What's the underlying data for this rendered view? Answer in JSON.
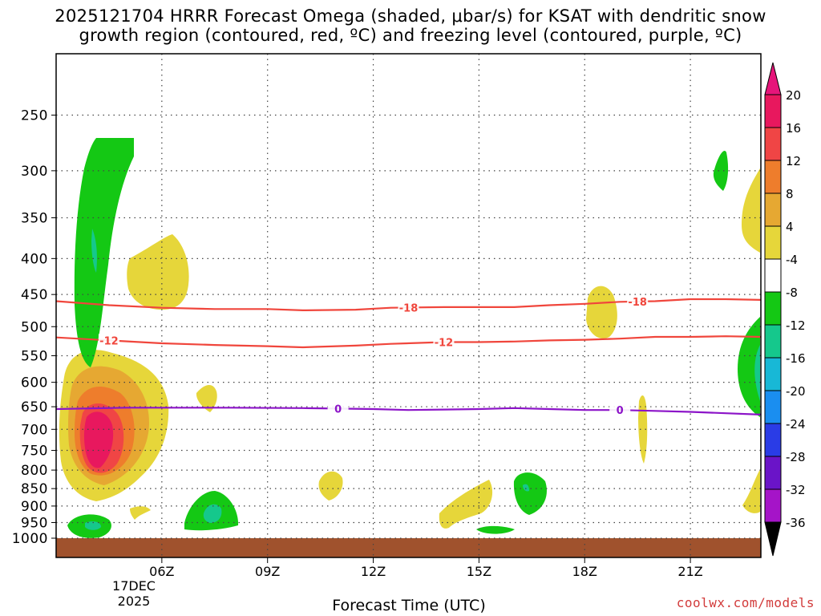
{
  "title_line1": "2025121704 HRRR Forecast Omega (shaded, μbar/s) for KSAT with dendritic snow",
  "title_line2": "growth region (contoured, red, ºC) and freezing level (contoured, purple, ºC)",
  "credit": "coolwx.com/models",
  "chart_data": {
    "type": "contour",
    "xlabel": "Forecast Time (UTC)",
    "x_ticks": [
      "06Z",
      "09Z",
      "12Z",
      "15Z",
      "18Z",
      "21Z"
    ],
    "x_tick_hours": [
      6,
      9,
      12,
      15,
      18,
      21
    ],
    "x_range_hours": [
      3.0,
      23.0
    ],
    "date_label": [
      "17DEC",
      "2025"
    ],
    "y_ticks": [
      250,
      300,
      350,
      400,
      450,
      500,
      550,
      600,
      650,
      700,
      750,
      800,
      850,
      900,
      950,
      1000
    ],
    "y_range": [
      200,
      1030
    ],
    "y_scale": "log-pressure",
    "grid": "dotted",
    "colorbar": {
      "levels": [
        20,
        16,
        12,
        8,
        4,
        -4,
        -8,
        -12,
        -16,
        -20,
        -24,
        -28,
        -32,
        -36
      ],
      "colors": [
        "#e8185e",
        "#f04545",
        "#ee7d2c",
        "#e6a832",
        "#e6d63a",
        "#ffffff",
        "#14c814",
        "#15c88c",
        "#18b8d6",
        "#1a8ef0",
        "#2a3ce6",
        "#6a14c8",
        "#a514c8",
        "#a0a0a0",
        "#000000",
        "#e6157a"
      ]
    },
    "contours": [
      {
        "name": "dendritic -18",
        "label": "-18",
        "color": "#f0463c",
        "x": [
          3.0,
          4.5,
          6.0,
          7.5,
          9.0,
          10.0,
          11.5,
          12.5,
          14.0,
          16.0,
          17.0,
          18.0,
          19.0,
          20.0,
          21.0,
          22.0,
          23.0
        ],
        "y": [
          460,
          466,
          470,
          472,
          472,
          474,
          473,
          470,
          469,
          469,
          466,
          464,
          461,
          460,
          457,
          457,
          458
        ]
      },
      {
        "name": "dendritic -12",
        "label": "-12",
        "color": "#f0463c",
        "x": [
          3.0,
          4.5,
          6.0,
          7.5,
          9.0,
          10.0,
          11.5,
          12.5,
          14.0,
          15.0,
          16.0,
          17.0,
          18.0,
          19.0,
          20.0,
          21.0,
          22.0,
          23.0
        ],
        "y": [
          518,
          523,
          528,
          531,
          533,
          535,
          532,
          529,
          526,
          526,
          525,
          523,
          522,
          520,
          517,
          517,
          516,
          517
        ]
      },
      {
        "name": "freezing level 0",
        "label": "0",
        "color": "#8c14c8",
        "x": [
          3.0,
          5.0,
          6.0,
          8.0,
          10.0,
          11.0,
          12.0,
          13.0,
          14.0,
          15.0,
          16.0,
          17.0,
          18.0,
          19.0,
          20.0,
          21.0,
          22.0,
          23.0
        ],
        "y": [
          655,
          652,
          652,
          652,
          653,
          654,
          655,
          657,
          656,
          655,
          653,
          655,
          657,
          657,
          659,
          661,
          664,
          667
        ]
      }
    ],
    "shaded_regions": [
      {
        "omega": 20,
        "center_hour": 4.2,
        "pressure": 700
      },
      {
        "omega": 8,
        "center_hour": 7.0,
        "pressure": 410
      },
      {
        "omega": -8,
        "center_hour": 3.9,
        "pressure": 350
      },
      {
        "omega": -12,
        "center_hour": 4.3,
        "pressure": 930
      },
      {
        "omega": -12,
        "center_hour": 8.0,
        "pressure": 900
      },
      {
        "omega": -8,
        "center_hour": 16.0,
        "pressure": 845
      },
      {
        "omega": 4,
        "center_hour": 18.0,
        "pressure": 485
      },
      {
        "omega": 4,
        "center_hour": 19.0,
        "pressure": 690
      },
      {
        "omega": -8,
        "center_hour": 21.0,
        "pressure": 300
      },
      {
        "omega": -12,
        "center_hour": 22.9,
        "pressure": 560
      }
    ],
    "ground_level": 975
  }
}
